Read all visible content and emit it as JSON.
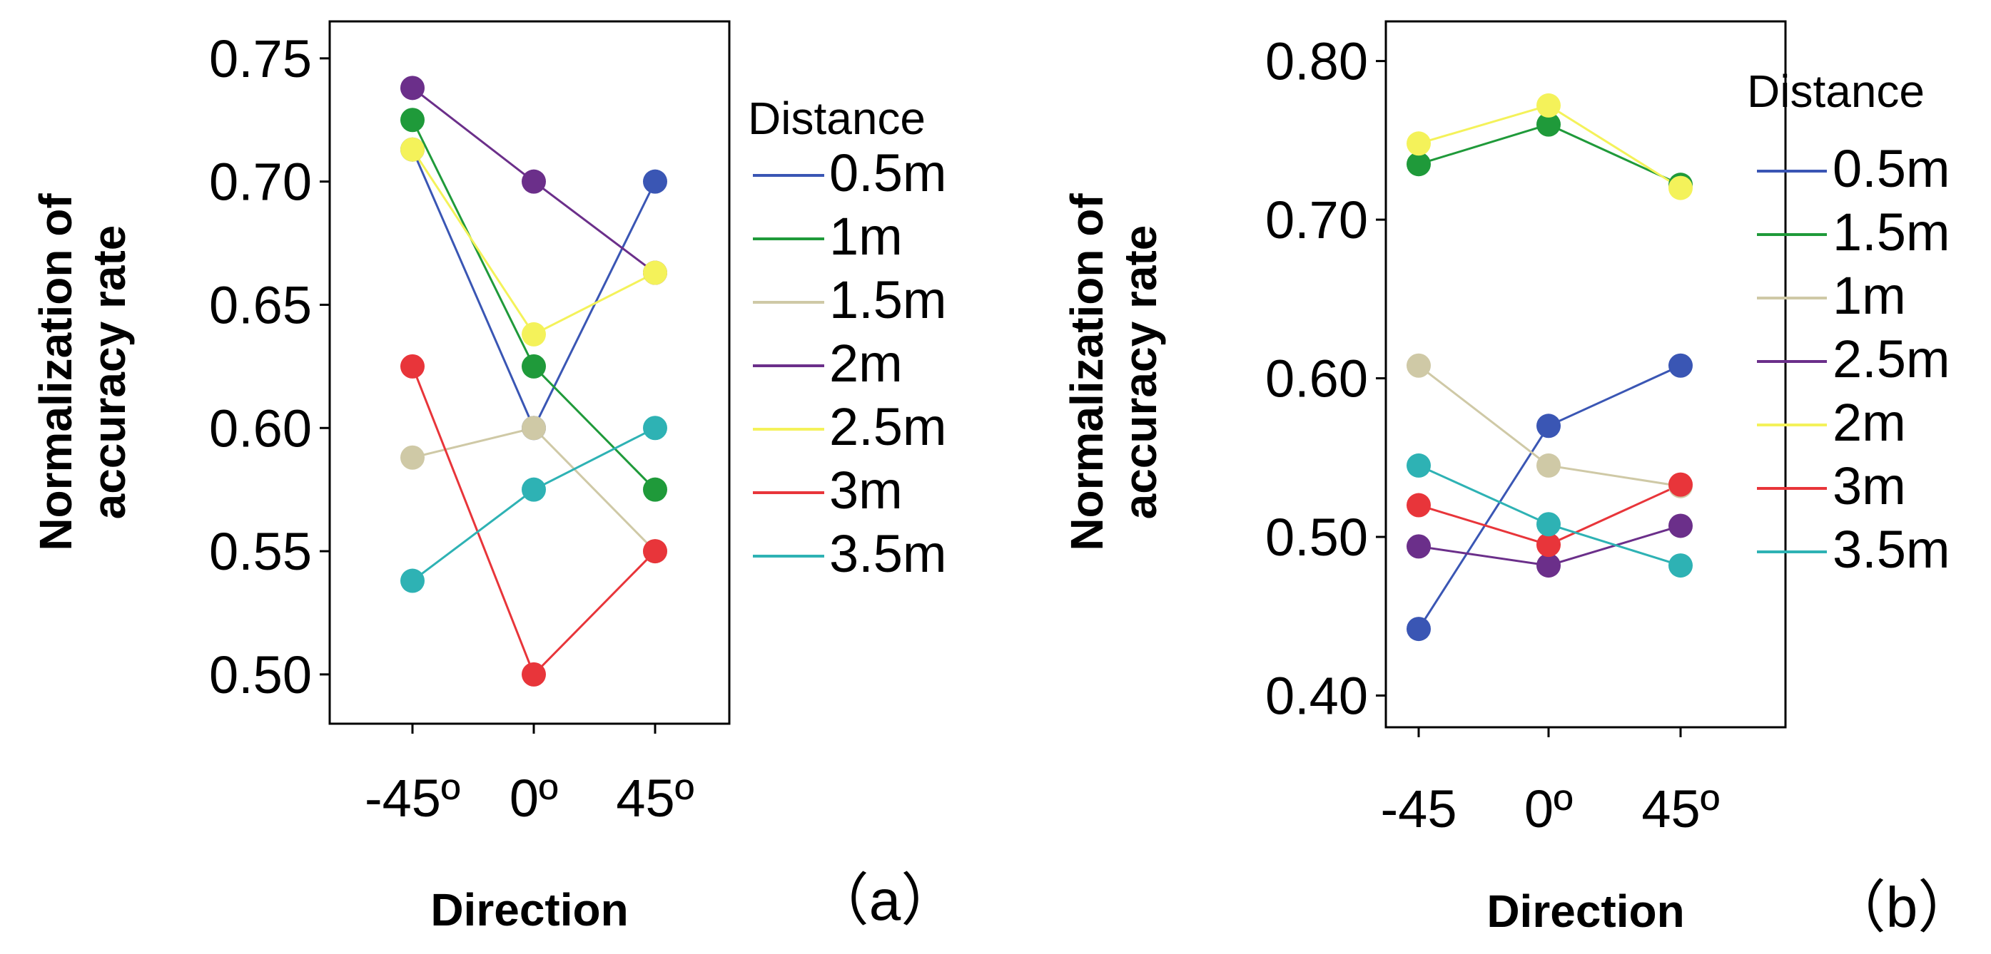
{
  "chart_data": [
    {
      "type": "line",
      "panel_label": "（a）",
      "xlabel": "Direction",
      "ylabel_lines": [
        "Normalization of",
        "accuracy rate"
      ],
      "categories": [
        "-45º",
        "0º",
        "45º"
      ],
      "ylim": [
        0.48,
        0.765
      ],
      "yticks": [
        0.5,
        0.55,
        0.6,
        0.65,
        0.7,
        0.75
      ],
      "ytick_labels": [
        "0.50",
        "0.55",
        "0.60",
        "0.65",
        "0.70",
        "0.75"
      ],
      "legend_title": "Distance",
      "series": [
        {
          "name": "0.5m",
          "color": "#3a56b4",
          "values": [
            0.713,
            0.6,
            0.7
          ]
        },
        {
          "name": "1m",
          "color": "#1f9a3a",
          "values": [
            0.725,
            0.625,
            0.575
          ]
        },
        {
          "name": "1.5m",
          "color": "#cfc9a6",
          "values": [
            0.588,
            0.6,
            0.55
          ]
        },
        {
          "name": "2m",
          "color": "#6b2f8a",
          "values": [
            0.738,
            0.7,
            0.663
          ]
        },
        {
          "name": "2.5m",
          "color": "#f4f25a",
          "values": [
            0.713,
            0.638,
            0.663
          ]
        },
        {
          "name": "3m",
          "color": "#e8353a",
          "values": [
            0.625,
            0.5,
            0.55
          ]
        },
        {
          "name": "3.5m",
          "color": "#2eb2b4",
          "values": [
            0.538,
            0.575,
            0.6
          ]
        }
      ]
    },
    {
      "type": "line",
      "panel_label": "（b）",
      "xlabel": "Direction",
      "ylabel_lines": [
        "Normalization of",
        "accuracy rate"
      ],
      "categories": [
        "-45",
        "0º",
        "45º"
      ],
      "ylim": [
        0.38,
        0.825
      ],
      "yticks": [
        0.4,
        0.5,
        0.6,
        0.7,
        0.8
      ],
      "ytick_labels": [
        "0.40",
        "0.50",
        "0.60",
        "0.70",
        "0.80"
      ],
      "legend_title": "Distance",
      "series": [
        {
          "name": "0.5m",
          "color": "#3a56b4",
          "values": [
            0.442,
            0.57,
            0.608
          ]
        },
        {
          "name": "1.5m",
          "color": "#1f9a3a",
          "values": [
            0.735,
            0.76,
            0.722
          ]
        },
        {
          "name": "1m",
          "color": "#cfc9a6",
          "values": [
            0.608,
            0.545,
            0.532
          ]
        },
        {
          "name": "2.5m",
          "color": "#6b2f8a",
          "values": [
            0.494,
            0.482,
            0.507
          ]
        },
        {
          "name": "2m",
          "color": "#f4f25a",
          "values": [
            0.748,
            0.772,
            0.72
          ]
        },
        {
          "name": "3m",
          "color": "#e8353a",
          "values": [
            0.52,
            0.495,
            0.533
          ]
        },
        {
          "name": "3.5m",
          "color": "#2eb2b4",
          "values": [
            0.545,
            0.508,
            0.482
          ]
        }
      ]
    }
  ]
}
